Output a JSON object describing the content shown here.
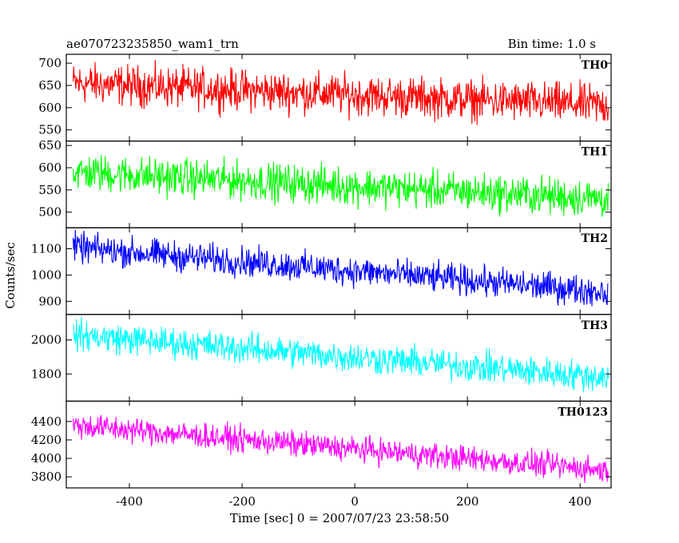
{
  "header": {
    "title": "ae070723235850_wam1_trn",
    "bin_time": "Bin time: 1.0 s"
  },
  "chart_data": {
    "type": "line",
    "title": "ae070723235850_wam1_trn",
    "subtitle": "Bin time: 1.0 s",
    "xlabel": "Time [sec] 0 = 2007/07/23 23:58:50",
    "ylabel": "Counts/sec",
    "xlim": [
      -512,
      455
    ],
    "x_data_range": [
      -500,
      450
    ],
    "x_ticks": [
      -400,
      -200,
      0,
      200,
      400
    ],
    "grid": false,
    "legend": "none",
    "shared_x": true,
    "panels": [
      {
        "name": "TH0",
        "color": "#ff0000",
        "ylim": [
          525,
          720
        ],
        "y_ticks": [
          550,
          600,
          650,
          700
        ],
        "trend_start": 655,
        "trend_end": 605,
        "noise_amplitude": 28
      },
      {
        "name": "TH1",
        "color": "#00ff00",
        "ylim": [
          465,
          660
        ],
        "y_ticks": [
          500,
          550,
          600,
          650
        ],
        "trend_start": 590,
        "trend_end": 530,
        "noise_amplitude": 26
      },
      {
        "name": "TH2",
        "color": "#0000ff",
        "ylim": [
          850,
          1180
        ],
        "y_ticks": [
          900,
          1000,
          1100
        ],
        "trend_start": 1105,
        "trend_end": 935,
        "noise_amplitude": 35
      },
      {
        "name": "TH3",
        "color": "#00ffff",
        "ylim": [
          1640,
          2150
        ],
        "y_ticks": [
          1800,
          2000
        ],
        "trend_start": 2030,
        "trend_end": 1780,
        "noise_amplitude": 55
      },
      {
        "name": "TH0123",
        "color": "#ff00ff",
        "ylim": [
          3680,
          4620
        ],
        "y_ticks": [
          3800,
          4000,
          4200,
          4400
        ],
        "trend_start": 4360,
        "trend_end": 3870,
        "noise_amplitude": 85
      }
    ]
  }
}
